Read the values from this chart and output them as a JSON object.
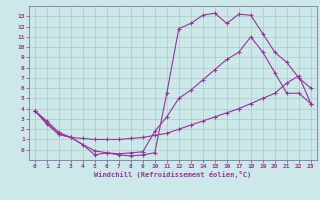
{
  "background_color": "#cce8e8",
  "grid_color": "#aacccc",
  "line_color": "#993399",
  "xlim": [
    -0.5,
    23.5
  ],
  "ylim": [
    -1,
    14
  ],
  "xticks": [
    0,
    1,
    2,
    3,
    4,
    5,
    6,
    7,
    8,
    9,
    10,
    11,
    12,
    13,
    14,
    15,
    16,
    17,
    18,
    19,
    20,
    21,
    22,
    23
  ],
  "yticks": [
    0,
    1,
    2,
    3,
    4,
    5,
    6,
    7,
    8,
    9,
    10,
    11,
    12,
    13
  ],
  "xlabel": "Windchill (Refroidissement éolien,°C)",
  "curve1_x": [
    0,
    1,
    2,
    3,
    4,
    5,
    6,
    7,
    8,
    9,
    10,
    11,
    12,
    13,
    14,
    15,
    16,
    17,
    18,
    19,
    20,
    21,
    22,
    23
  ],
  "curve1_y": [
    3.8,
    2.8,
    1.7,
    1.2,
    0.5,
    -0.1,
    -0.3,
    -0.4,
    -0.3,
    -0.2,
    1.8,
    3.2,
    5.0,
    5.8,
    6.8,
    7.8,
    8.8,
    9.5,
    11.0,
    9.5,
    7.5,
    5.5,
    5.5,
    4.5
  ],
  "curve2_x": [
    0,
    1,
    2,
    3,
    4,
    5,
    6,
    7,
    8,
    9,
    10,
    11,
    12,
    13,
    14,
    15,
    16,
    17,
    18,
    19,
    20,
    21,
    22,
    23
  ],
  "curve2_y": [
    3.8,
    2.5,
    1.5,
    1.2,
    1.1,
    1.0,
    1.0,
    1.0,
    1.1,
    1.2,
    1.4,
    1.6,
    2.0,
    2.4,
    2.8,
    3.2,
    3.6,
    4.0,
    4.5,
    5.0,
    5.5,
    6.5,
    7.2,
    4.5
  ],
  "curve3_x": [
    0,
    2,
    3,
    4,
    5,
    6,
    7,
    8,
    9,
    10,
    11,
    12,
    13,
    14,
    15,
    16,
    17,
    18,
    19,
    20,
    21,
    22,
    23
  ],
  "curve3_y": [
    3.8,
    1.5,
    1.2,
    0.5,
    -0.5,
    -0.3,
    -0.5,
    -0.6,
    -0.5,
    -0.3,
    5.5,
    11.8,
    12.3,
    13.1,
    13.3,
    12.3,
    13.2,
    13.1,
    11.3,
    9.5,
    8.5,
    7.0,
    6.0
  ]
}
